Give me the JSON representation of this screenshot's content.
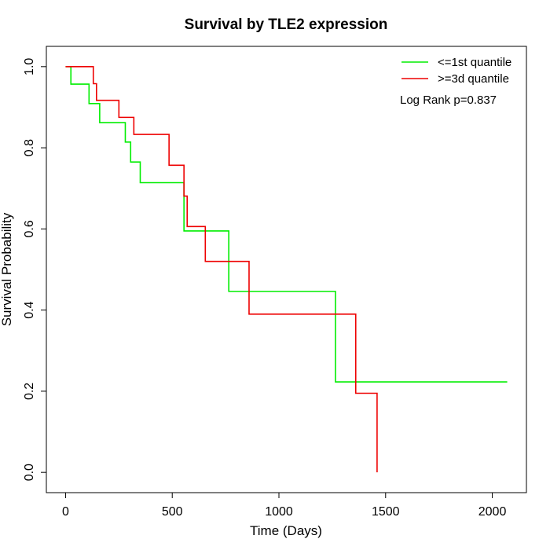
{
  "chart_data": {
    "type": "line",
    "step": true,
    "title": "Survival by TLE2 expression",
    "xlabel": "Time (Days)",
    "ylabel": "Survival Probability",
    "xlim": [
      -90,
      2160
    ],
    "ylim": [
      -0.05,
      1.05
    ],
    "xticks": [
      0,
      500,
      1000,
      1500,
      2000
    ],
    "yticks": [
      0.0,
      0.2,
      0.4,
      0.6,
      0.8,
      1.0
    ],
    "xtick_labels": [
      "0",
      "500",
      "1000",
      "1500",
      "2000"
    ],
    "ytick_labels": [
      "0.0",
      "0.2",
      "0.4",
      "0.6",
      "0.8",
      "1.0"
    ],
    "grid": false,
    "legend_position": "top-right",
    "annotation": "Log Rank p=0.837",
    "series": [
      {
        "name": "<=1st quantile",
        "color": "#00ee00",
        "x": [
          0,
          25,
          110,
          160,
          280,
          305,
          350,
          555,
          765,
          1265,
          2070
        ],
        "y": [
          1.0,
          0.957,
          0.909,
          0.862,
          0.814,
          0.765,
          0.714,
          0.595,
          0.446,
          0.223,
          0.223
        ]
      },
      {
        "name": ">=3d quantile",
        "color": "#ee0000",
        "x": [
          0,
          130,
          145,
          250,
          320,
          485,
          555,
          570,
          655,
          860,
          1360,
          1460,
          1460
        ],
        "y": [
          1.0,
          0.958,
          0.917,
          0.875,
          0.833,
          0.757,
          0.681,
          0.606,
          0.52,
          0.39,
          0.195,
          0.195,
          0.0
        ]
      }
    ]
  }
}
